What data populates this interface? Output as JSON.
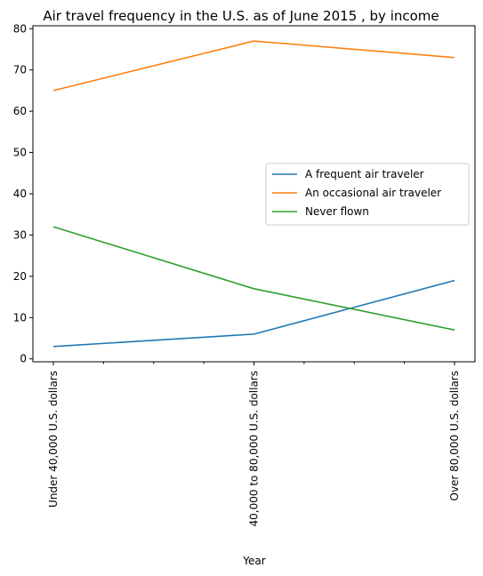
{
  "chart_data": {
    "type": "line",
    "title": "Air travel frequency in the U.S. as of June 2015 , by income",
    "xlabel": "Year",
    "ylabel": "",
    "categories": [
      "Under 40,000 U.S. dollars",
      "40,000 to 80,000 U.S. dollars",
      "Over 80,000 U.S. dollars"
    ],
    "yticks": [
      0,
      10,
      20,
      30,
      40,
      50,
      60,
      70,
      80
    ],
    "ylim": [
      -0.7,
      80.7
    ],
    "grid": false,
    "legend_position": "center-right",
    "series": [
      {
        "name": "A frequent air traveler",
        "values": [
          3,
          6,
          19
        ],
        "color": "#1f77b4"
      },
      {
        "name": "An occasional air traveler",
        "values": [
          65,
          77,
          73
        ],
        "color": "#ff7f0e"
      },
      {
        "name": "Never flown",
        "values": [
          32,
          17,
          7
        ],
        "color": "#2ca02c"
      }
    ]
  }
}
